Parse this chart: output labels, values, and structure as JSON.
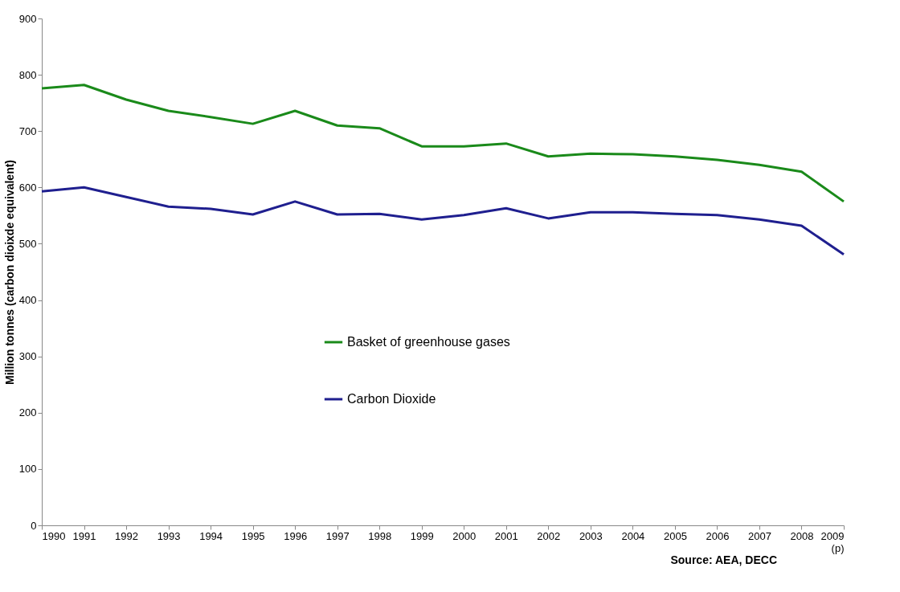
{
  "chart_data": {
    "type": "line",
    "ylabel": "Million tonnes (carbon dioixde equivalent)",
    "categories": [
      "1990",
      "1991",
      "1992",
      "1993",
      "1994",
      "1995",
      "1996",
      "1997",
      "1998",
      "1999",
      "2000",
      "2001",
      "2002",
      "2003",
      "2004",
      "2005",
      "2006",
      "2007",
      "2008",
      "2009 (p)"
    ],
    "series": [
      {
        "name": "Basket of greenhouse gases",
        "color": "#1a8a1a",
        "values": [
          776,
          782,
          756,
          736,
          725,
          713,
          736,
          710,
          705,
          673,
          673,
          678,
          655,
          660,
          659,
          655,
          649,
          640,
          628,
          575
        ]
      },
      {
        "name": "Carbon Dioxide",
        "color": "#1f1f8f",
        "values": [
          593,
          600,
          583,
          566,
          562,
          552,
          575,
          552,
          553,
          543,
          551,
          563,
          545,
          556,
          556,
          553,
          551,
          543,
          532,
          481
        ]
      }
    ],
    "ylim": [
      0,
      900
    ],
    "yticks": [
      0,
      100,
      200,
      300,
      400,
      500,
      600,
      700,
      800,
      900
    ],
    "grid": false,
    "legend": "center",
    "marker": "none",
    "line_style": "solid",
    "annotations": [
      "Source: AEA, DECC"
    ]
  }
}
